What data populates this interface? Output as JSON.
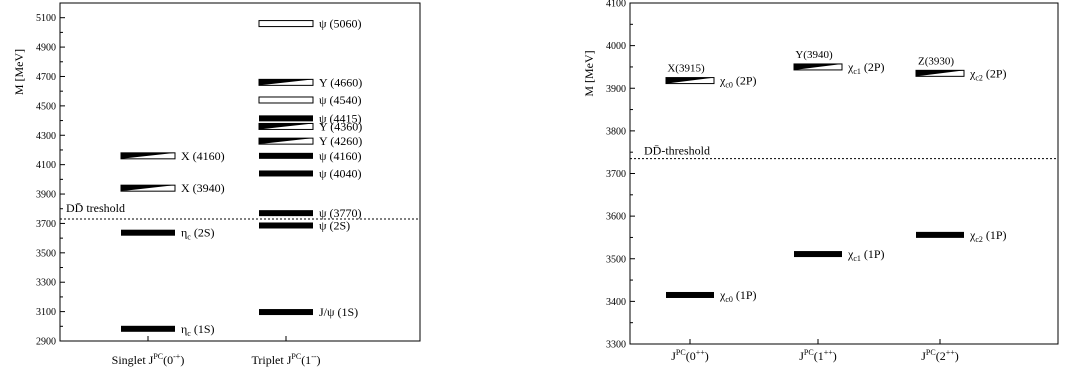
{
  "chart_data": [
    {
      "type": "level-diagram",
      "ylabel": "M [MeV]",
      "ylim": [
        2900,
        5200
      ],
      "ytick_step": 200,
      "categories": [
        "Singlet J^PC(0^-+)",
        "Triplet J^PC(1^--)"
      ],
      "threshold": {
        "value": 3730,
        "label": "DD̄ treshold"
      },
      "levels": [
        {
          "cat": 0,
          "mass": 2983,
          "label": "η_c (1S)",
          "style": "solid"
        },
        {
          "cat": 0,
          "mass": 3637,
          "label": "η_c (2S)",
          "style": "solid"
        },
        {
          "cat": 0,
          "mass": 3940,
          "label": "X (3940)",
          "style": "half"
        },
        {
          "cat": 0,
          "mass": 4160,
          "label": "X (4160)",
          "style": "half"
        },
        {
          "cat": 1,
          "mass": 3097,
          "label": "J/ψ (1S)",
          "style": "solid"
        },
        {
          "cat": 1,
          "mass": 3686,
          "label": "ψ (2S)",
          "style": "solid"
        },
        {
          "cat": 1,
          "mass": 3770,
          "label": "ψ (3770)",
          "style": "solid"
        },
        {
          "cat": 1,
          "mass": 4040,
          "label": "ψ (4040)",
          "style": "solid"
        },
        {
          "cat": 1,
          "mass": 4160,
          "label": "ψ (4160)",
          "style": "solid"
        },
        {
          "cat": 1,
          "mass": 4260,
          "label": "Y (4260)",
          "style": "half"
        },
        {
          "cat": 1,
          "mass": 4360,
          "label": "Y (4360)",
          "style": "half"
        },
        {
          "cat": 1,
          "mass": 4415,
          "label": "ψ (4415)",
          "style": "solid"
        },
        {
          "cat": 1,
          "mass": 4540,
          "label": "ψ (4540)",
          "style": "open"
        },
        {
          "cat": 1,
          "mass": 4660,
          "label": "Y (4660)",
          "style": "half"
        },
        {
          "cat": 1,
          "mass": 5060,
          "label": "ψ (5060)",
          "style": "open"
        }
      ]
    },
    {
      "type": "level-diagram",
      "ylabel": "M [MeV]",
      "ylim": [
        3300,
        4100
      ],
      "ytick_step": 100,
      "categories": [
        "J^PC(0^++)",
        "J^PC(1^++)",
        "J^PC(2^++)"
      ],
      "threshold": {
        "value": 3735,
        "label": "DD̄-threshold"
      },
      "levels": [
        {
          "cat": 0,
          "mass": 3415,
          "label": "χ_c0 (1P)",
          "style": "solid"
        },
        {
          "cat": 0,
          "mass": 3918,
          "label": "χ_c0 (2P)",
          "style": "half",
          "toplabel": "X(3915)"
        },
        {
          "cat": 1,
          "mass": 3511,
          "label": "χ_c1 (1P)",
          "style": "solid"
        },
        {
          "cat": 1,
          "mass": 3950,
          "label": "χ_c1 (2P)",
          "style": "half",
          "toplabel": "Y(3940)"
        },
        {
          "cat": 2,
          "mass": 3556,
          "label": "χ_c2 (1P)",
          "style": "solid"
        },
        {
          "cat": 2,
          "mass": 3935,
          "label": "χ_c2 (2P)",
          "style": "half",
          "toplabel": "Z(3930)"
        }
      ]
    }
  ]
}
